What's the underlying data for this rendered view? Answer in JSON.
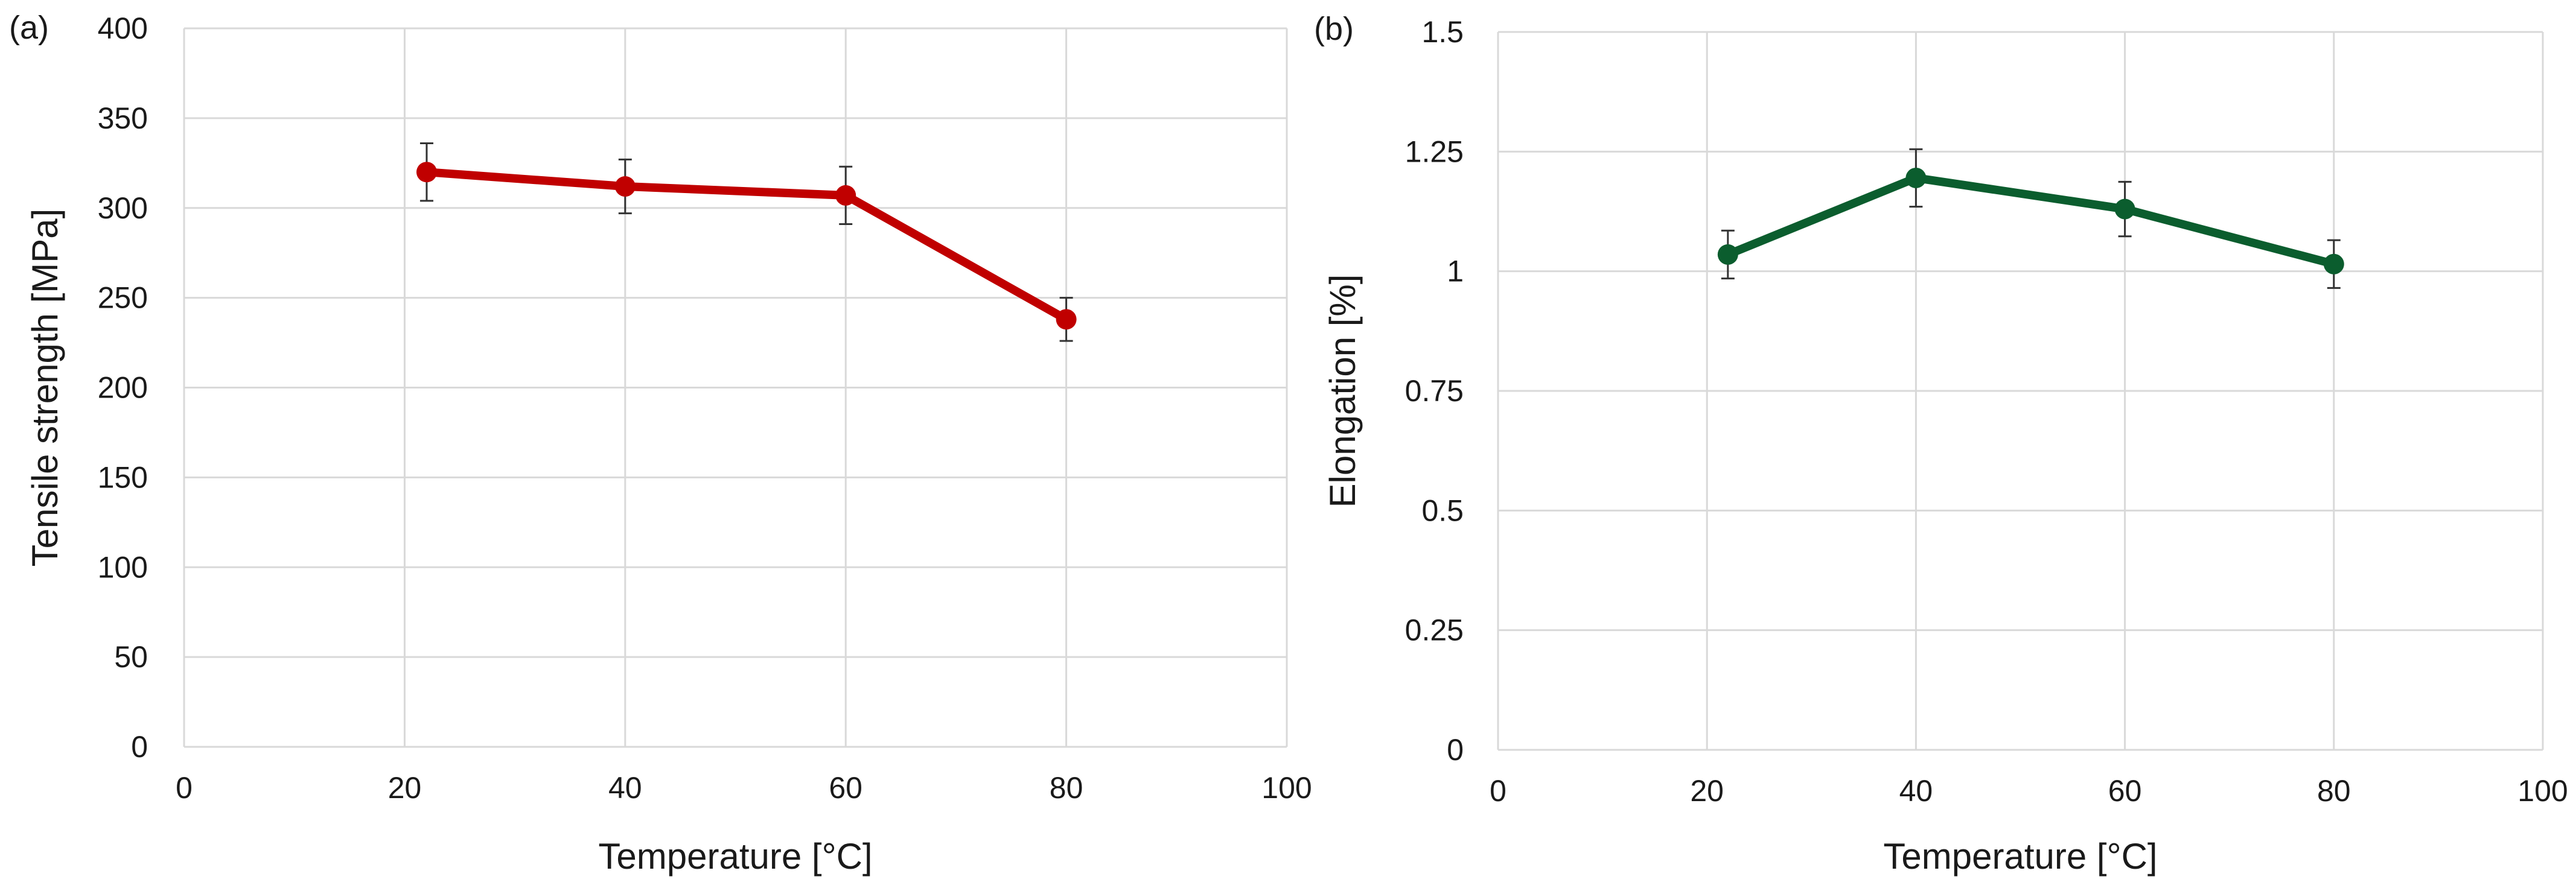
{
  "chart_data": [
    {
      "type": "line",
      "panel_label": "(a)",
      "title": "",
      "xlabel": "Temperature [°C]",
      "ylabel": "Tensile strength [MPa]",
      "xlim": [
        0,
        100
      ],
      "ylim": [
        0,
        400
      ],
      "xticks": [
        0,
        20,
        40,
        60,
        80,
        100
      ],
      "yticks": [
        0,
        50,
        100,
        150,
        200,
        250,
        300,
        350,
        400
      ],
      "xtick_labels": [
        "0",
        "20",
        "40",
        "60",
        "80",
        "100"
      ],
      "ytick_labels": [
        "0",
        "50",
        "100",
        "150",
        "200",
        "250",
        "300",
        "350",
        "400"
      ],
      "grid": true,
      "legend": "none",
      "color": "#c00000",
      "series": [
        {
          "x": [
            22,
            40,
            60,
            80
          ],
          "y": [
            320,
            312,
            307,
            238
          ],
          "error": [
            16,
            15,
            16,
            12
          ]
        }
      ]
    },
    {
      "type": "line",
      "panel_label": "(b)",
      "title": "",
      "xlabel": "Temperature [°C]",
      "ylabel": "Elongation [%]",
      "xlim": [
        0,
        100
      ],
      "ylim": [
        0,
        1.5
      ],
      "xticks": [
        0,
        20,
        40,
        60,
        80,
        100
      ],
      "yticks": [
        0,
        0.25,
        0.5,
        0.75,
        1,
        1.25,
        1.5
      ],
      "xtick_labels": [
        "0",
        "20",
        "40",
        "60",
        "80",
        "100"
      ],
      "ytick_labels": [
        "0",
        "0.25",
        "0.5",
        "0.75",
        "1",
        "1.25",
        "1.5"
      ],
      "grid": true,
      "legend": "none",
      "color": "#0b5d2e",
      "series": [
        {
          "x": [
            22,
            40,
            60,
            80
          ],
          "y": [
            1.035,
            1.195,
            1.13,
            1.015
          ],
          "error": [
            0.05,
            0.06,
            0.057,
            0.05
          ]
        }
      ]
    }
  ]
}
